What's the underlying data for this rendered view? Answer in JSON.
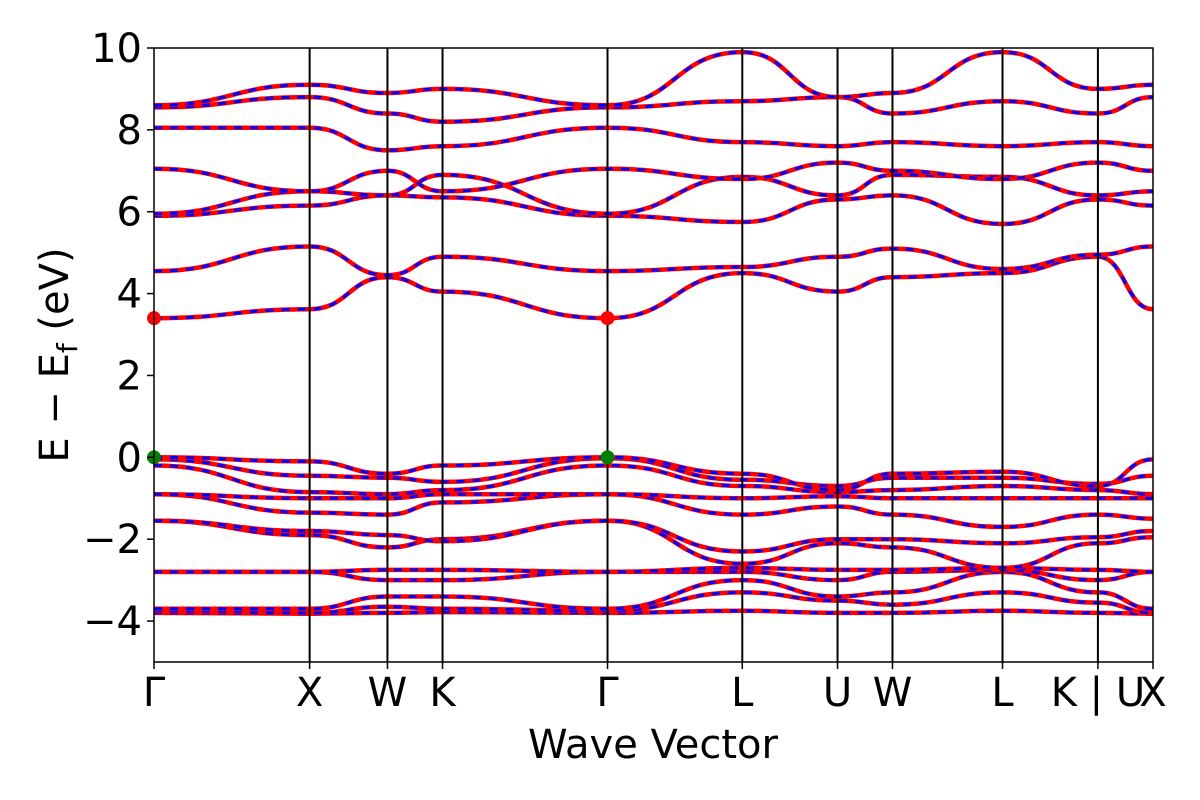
{
  "chart_data": {
    "type": "line",
    "title": "",
    "xlabel": "Wave Vector",
    "ylabel_parts": {
      "main": "E − E",
      "sub": "f",
      "unit": " (eV)"
    },
    "ylim": [
      -5,
      10
    ],
    "y_ticks": [
      -4,
      -2,
      0,
      2,
      4,
      6,
      8,
      10
    ],
    "y_tick_labels": [
      "−4",
      "−2",
      "0",
      "2",
      "4",
      "6",
      "8",
      "10"
    ],
    "kpath": [
      {
        "label": "Γ",
        "x": 0.0
      },
      {
        "label": "X",
        "x": 1.0
      },
      {
        "label": "W",
        "x": 1.5
      },
      {
        "label": "K",
        "x": 1.854
      },
      {
        "label": "Γ",
        "x": 2.914
      },
      {
        "label": "L",
        "x": 3.78
      },
      {
        "label": "U",
        "x": 4.392
      },
      {
        "label": "W",
        "x": 4.745
      },
      {
        "label": "L",
        "x": 5.452
      },
      {
        "label": "K | U",
        "x": 6.065
      },
      {
        "label": "X",
        "x": 6.419
      }
    ],
    "band_colors": {
      "dft": "#ff0000",
      "model": "#0000ff"
    },
    "extrema": [
      {
        "kind": "CBM",
        "x": 0.0,
        "y": 3.4,
        "color": "#ff0000"
      },
      {
        "kind": "CBM",
        "x": 2.914,
        "y": 3.4,
        "color": "#ff0000"
      },
      {
        "kind": "VBM",
        "x": 0.0,
        "y": 0.0,
        "color": "#008000"
      },
      {
        "kind": "VBM",
        "x": 2.914,
        "y": 0.0,
        "color": "#008000"
      }
    ],
    "bands": [
      {
        "name": "v1",
        "nodes": [
          -3.8,
          -3.82,
          -3.8,
          -3.78,
          -3.8,
          -3.75,
          -3.8,
          -3.8,
          -3.75,
          -3.8,
          -3.82
        ]
      },
      {
        "name": "v2",
        "nodes": [
          -3.75,
          -3.8,
          -3.65,
          -3.7,
          -3.75,
          -3.3,
          -3.5,
          -3.6,
          -3.3,
          -3.55,
          -3.8
        ]
      },
      {
        "name": "v3",
        "nodes": [
          -3.7,
          -3.7,
          -3.4,
          -3.4,
          -3.7,
          -3.0,
          -3.4,
          -3.3,
          -2.8,
          -3.3,
          -3.7
        ]
      },
      {
        "name": "v4",
        "nodes": [
          -2.8,
          -2.8,
          -3.0,
          -3.0,
          -2.8,
          -2.8,
          -3.0,
          -2.8,
          -2.75,
          -3.0,
          -2.8
        ]
      },
      {
        "name": "v5",
        "nodes": [
          -2.8,
          -2.8,
          -2.75,
          -2.75,
          -2.8,
          -2.7,
          -2.75,
          -2.75,
          -2.7,
          -2.75,
          -2.8
        ]
      },
      {
        "name": "v6",
        "nodes": [
          -1.55,
          -1.9,
          -2.2,
          -2.0,
          -1.55,
          -2.6,
          -2.1,
          -2.2,
          -2.7,
          -2.1,
          -1.95
        ]
      },
      {
        "name": "v7",
        "nodes": [
          -1.55,
          -1.8,
          -1.9,
          -2.05,
          -1.55,
          -2.3,
          -2.0,
          -2.0,
          -2.1,
          -1.95,
          -1.8
        ]
      },
      {
        "name": "v8",
        "nodes": [
          -0.9,
          -1.35,
          -1.4,
          -1.1,
          -0.9,
          -1.4,
          -1.2,
          -1.4,
          -1.7,
          -1.4,
          -1.5
        ]
      },
      {
        "name": "v9",
        "nodes": [
          -0.9,
          -1.0,
          -1.0,
          -0.9,
          -0.9,
          -1.0,
          -0.95,
          -1.0,
          -1.0,
          -1.0,
          -1.0
        ]
      },
      {
        "name": "v10",
        "nodes": [
          -0.2,
          -0.85,
          -0.9,
          -0.8,
          -0.2,
          -0.7,
          -0.85,
          -0.8,
          -0.7,
          -0.8,
          -0.9
        ]
      },
      {
        "name": "v11",
        "nodes": [
          -0.05,
          -0.45,
          -0.5,
          -0.6,
          -0.02,
          -0.55,
          -0.7,
          -0.5,
          -0.5,
          -0.65,
          -0.45
        ]
      },
      {
        "name": "v12",
        "nodes": [
          0.0,
          -0.1,
          -0.4,
          -0.2,
          0.0,
          -0.4,
          -0.8,
          -0.4,
          -0.35,
          -0.7,
          -0.05
        ]
      },
      {
        "name": "c1",
        "nodes": [
          3.4,
          3.62,
          4.4,
          4.05,
          3.4,
          4.5,
          4.05,
          4.4,
          4.5,
          4.9,
          3.62
        ]
      },
      {
        "name": "c2",
        "nodes": [
          4.55,
          5.15,
          4.45,
          4.9,
          4.55,
          4.65,
          4.9,
          5.1,
          4.6,
          4.95,
          5.15
        ]
      },
      {
        "name": "c3",
        "nodes": [
          5.9,
          6.15,
          6.4,
          6.35,
          5.9,
          5.75,
          6.3,
          6.4,
          5.7,
          6.3,
          6.15
        ]
      },
      {
        "name": "c4",
        "nodes": [
          5.95,
          6.5,
          6.4,
          6.9,
          5.95,
          6.85,
          6.4,
          6.9,
          6.85,
          6.4,
          6.5
        ]
      },
      {
        "name": "c5",
        "nodes": [
          7.05,
          6.5,
          7.0,
          6.5,
          7.05,
          6.8,
          7.2,
          7.0,
          6.8,
          7.2,
          7.0
        ]
      },
      {
        "name": "c6",
        "nodes": [
          8.05,
          8.05,
          7.5,
          7.6,
          8.05,
          7.7,
          7.6,
          7.7,
          7.6,
          7.7,
          7.6
        ]
      },
      {
        "name": "c7",
        "nodes": [
          8.55,
          8.8,
          8.4,
          8.2,
          8.55,
          8.7,
          8.8,
          8.4,
          8.7,
          8.4,
          8.8
        ]
      },
      {
        "name": "c8",
        "nodes": [
          8.6,
          9.1,
          8.9,
          9.0,
          8.6,
          9.9,
          8.8,
          8.9,
          9.9,
          9.0,
          9.1
        ]
      }
    ]
  }
}
